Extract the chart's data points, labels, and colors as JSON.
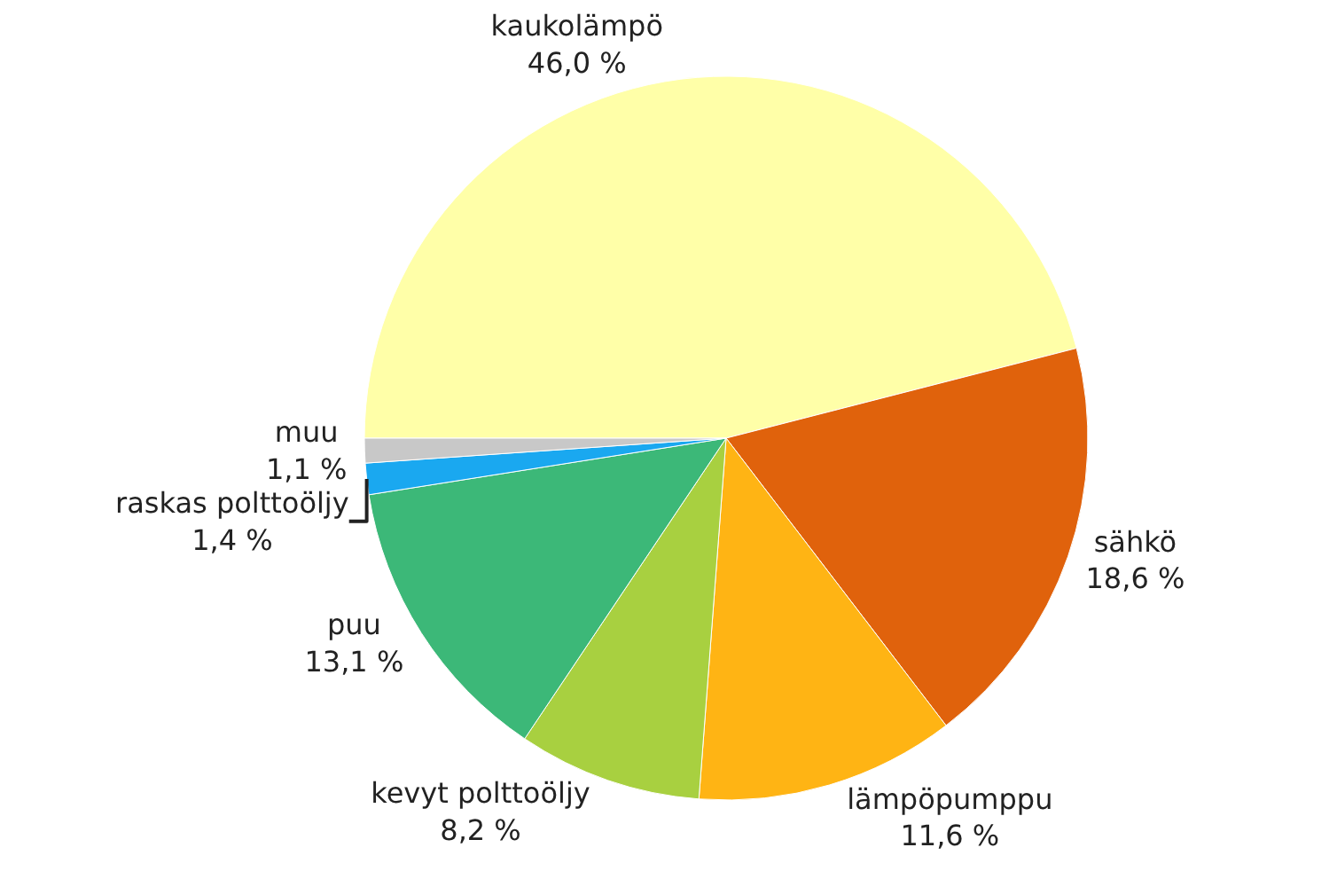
{
  "chart_data": {
    "type": "pie",
    "categories": [
      "kaukolämpö",
      "sähkö",
      "lämpöpumppu",
      "kevyt polttoöljy",
      "puu",
      "raskas polttoöljy",
      "muu"
    ],
    "values": [
      46.0,
      18.6,
      11.6,
      8.2,
      13.1,
      1.4,
      1.1
    ],
    "value_labels": [
      "46,0 %",
      "18,6 %",
      "11,6 %",
      "8,2 %",
      "13,1 %",
      "1,4 %",
      "1,1 %"
    ],
    "colors": [
      "#ffffa8",
      "#e0620c",
      "#ffb414",
      "#a8d040",
      "#3cb878",
      "#1aa8f0",
      "#c8c8c8"
    ],
    "legend": false
  }
}
